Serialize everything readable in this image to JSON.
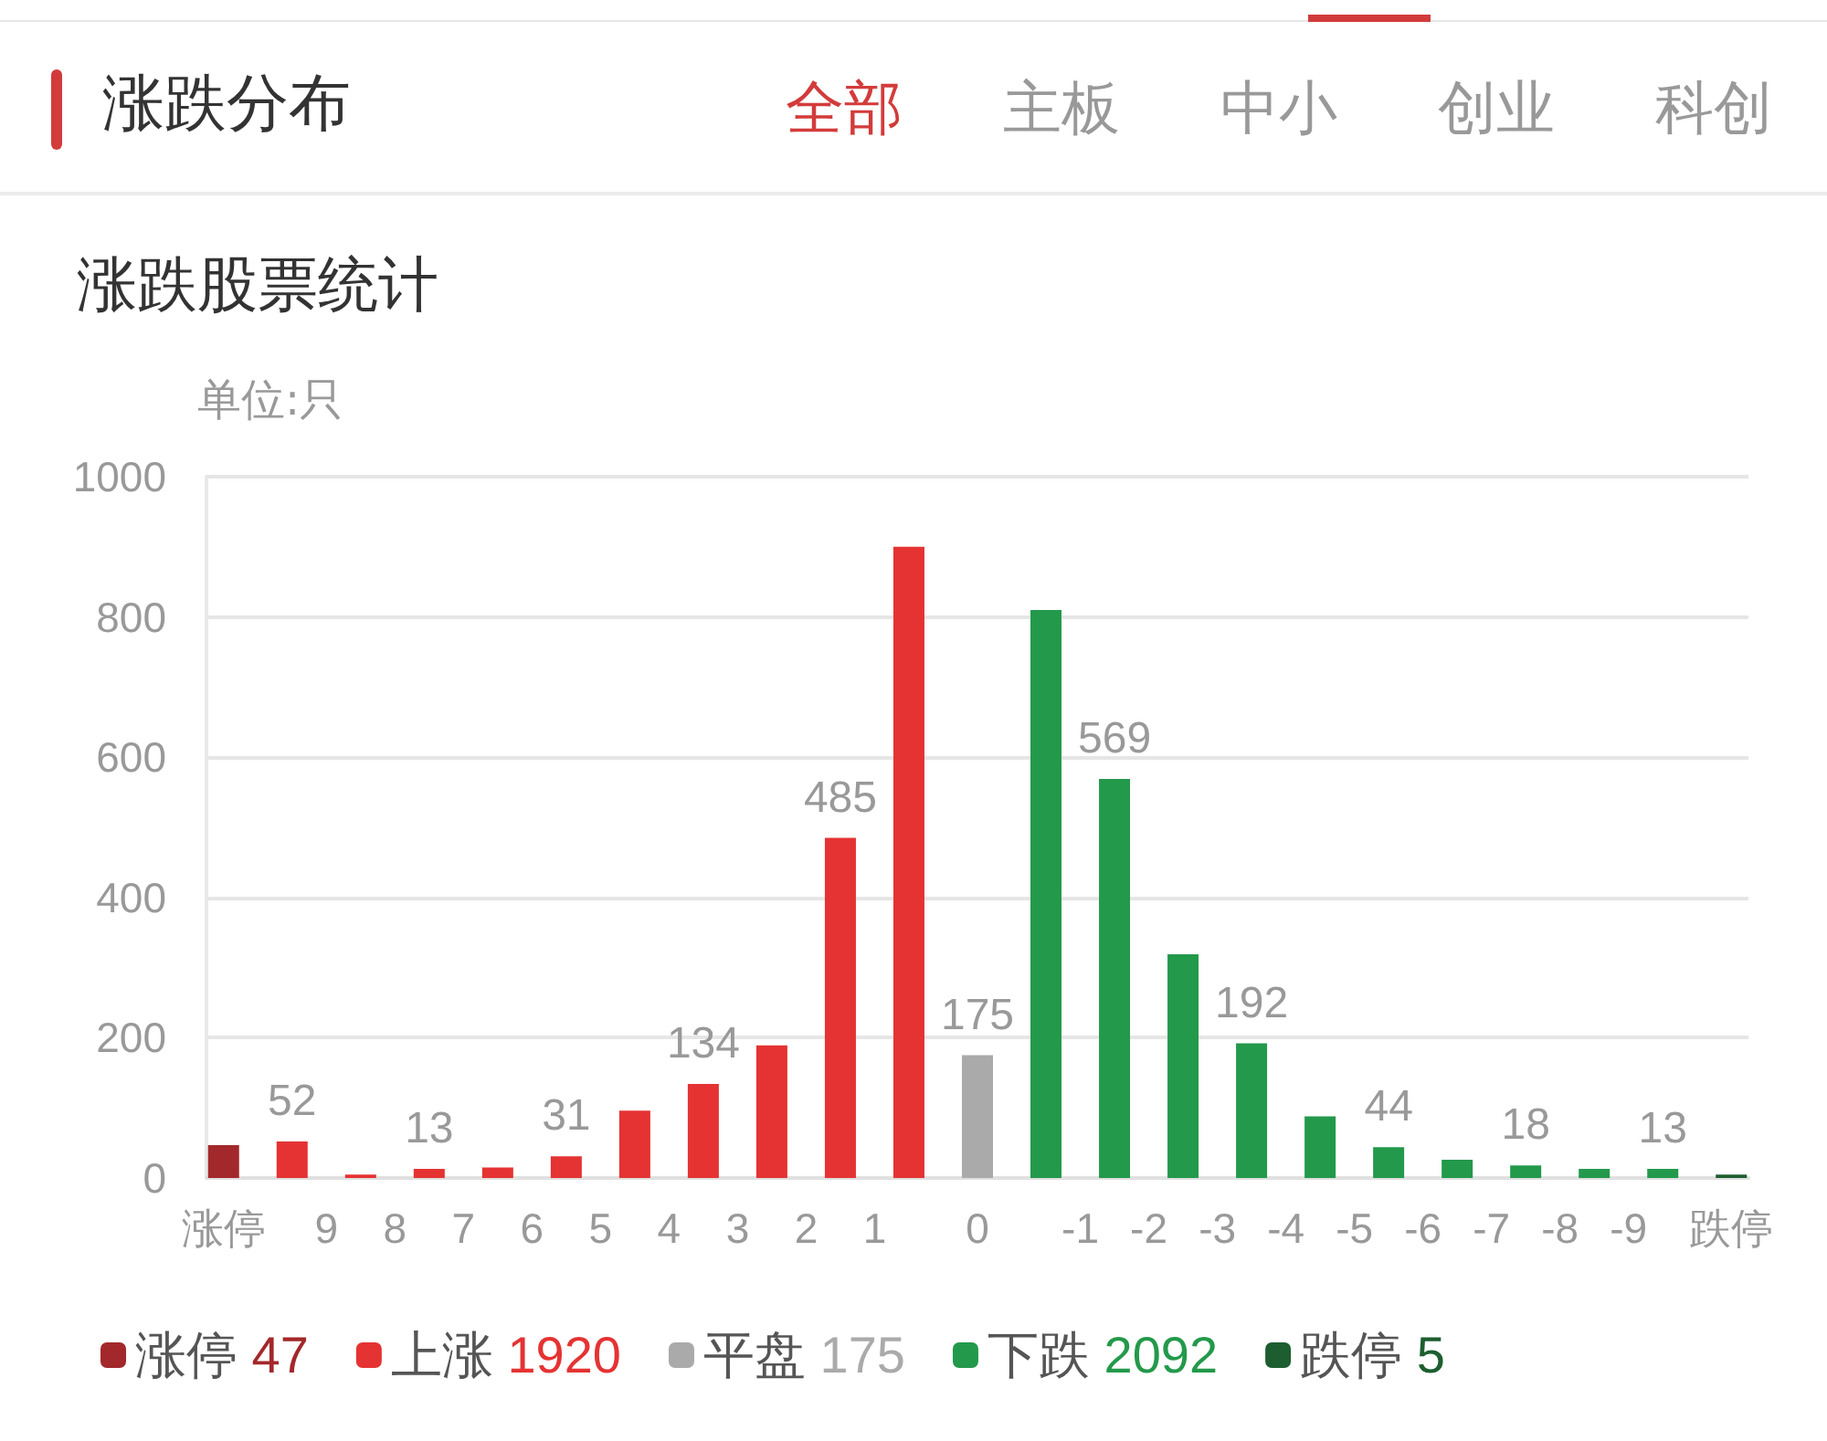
{
  "chart_data": {
    "type": "bar",
    "title": "涨跌分布",
    "subtitle": "涨跌股票统计",
    "ylabel": "单位:只",
    "annotations": [
      "全部",
      "主板",
      "中小",
      "创业",
      "科创"
    ],
    "categories": [
      "涨停",
      null,
      null,
      "9",
      null,
      "8",
      null,
      "7",
      null,
      "6",
      null,
      "5",
      null,
      "4",
      null,
      "3",
      null,
      "2",
      null,
      "1",
      null,
      null,
      "0",
      null,
      null,
      "-1",
      null,
      "-2",
      null,
      "-3",
      null,
      "-4",
      null,
      "-5",
      null,
      "-6",
      null,
      "-7",
      null,
      "-8",
      null,
      "-9",
      null,
      null,
      "跌停"
    ],
    "ylim": [
      0,
      1000
    ],
    "yticks": [
      0,
      200,
      400,
      600,
      800,
      1000
    ],
    "grid": "y",
    "legend": "bottom",
    "series": [
      {
        "name": "涨停 47",
        "color": "#a3282b",
        "values": [
          47,
          null,
          null,
          null,
          null,
          null,
          null,
          null,
          null,
          null,
          null,
          null,
          null,
          null,
          null,
          null,
          null,
          null,
          null,
          null,
          null,
          null,
          null,
          null,
          null,
          null,
          null,
          null,
          null,
          null,
          null,
          null,
          null,
          null,
          null,
          null,
          null,
          null,
          null,
          null,
          null,
          null,
          null,
          null,
          null
        ]
      },
      {
        "name": "上涨 1920",
        "color": "#e53333",
        "values": [
          null,
          null,
          52,
          null,
          5,
          null,
          13,
          null,
          15,
          null,
          31,
          null,
          96,
          null,
          134,
          null,
          189,
          null,
          485,
          null,
          900,
          null,
          null,
          null,
          null,
          null,
          null,
          null,
          null,
          null,
          null,
          null,
          null,
          null,
          null,
          null,
          null,
          null,
          null,
          null,
          null,
          null,
          null,
          null,
          null
        ],
        "value_labels": [
          null,
          null,
          "52",
          null,
          null,
          null,
          "13",
          null,
          null,
          null,
          "31",
          null,
          null,
          null,
          "134",
          null,
          null,
          null,
          "485",
          null,
          null,
          null,
          null,
          null,
          null,
          null,
          null,
          null,
          null,
          null,
          null,
          null,
          null,
          null,
          null,
          null,
          null,
          null,
          null,
          null,
          null,
          null,
          null,
          null,
          null
        ]
      },
      {
        "name": "平盘 175",
        "color": "#aaaaaa",
        "values": [
          null,
          null,
          null,
          null,
          null,
          null,
          null,
          null,
          null,
          null,
          null,
          null,
          null,
          null,
          null,
          null,
          null,
          null,
          null,
          null,
          null,
          null,
          175,
          null,
          null,
          null,
          null,
          null,
          null,
          null,
          null,
          null,
          null,
          null,
          null,
          null,
          null,
          null,
          null,
          null,
          null,
          null,
          null,
          null,
          null
        ],
        "value_labels": [
          null,
          null,
          null,
          null,
          null,
          null,
          null,
          null,
          null,
          null,
          null,
          null,
          null,
          null,
          null,
          null,
          null,
          null,
          null,
          null,
          null,
          null,
          "175",
          null,
          null,
          null,
          null,
          null,
          null,
          null,
          null,
          null,
          null,
          null,
          null,
          null,
          null,
          null,
          null,
          null,
          null,
          null,
          null,
          null,
          null
        ]
      },
      {
        "name": "下跌 2092",
        "color": "#23994b",
        "values": [
          null,
          null,
          null,
          null,
          null,
          null,
          null,
          null,
          null,
          null,
          null,
          null,
          null,
          null,
          null,
          null,
          null,
          null,
          null,
          null,
          null,
          null,
          null,
          null,
          810,
          null,
          569,
          null,
          319,
          null,
          192,
          null,
          88,
          null,
          44,
          null,
          26,
          null,
          18,
          null,
          13,
          null,
          13,
          null,
          null
        ],
        "value_labels": [
          null,
          null,
          null,
          null,
          null,
          null,
          null,
          null,
          null,
          null,
          null,
          null,
          null,
          null,
          null,
          null,
          null,
          null,
          null,
          null,
          null,
          null,
          null,
          null,
          null,
          null,
          "569",
          null,
          null,
          null,
          "192",
          null,
          null,
          null,
          "44",
          null,
          null,
          null,
          "18",
          null,
          null,
          null,
          "13",
          null,
          null
        ]
      },
      {
        "name": "跌停 5",
        "color": "#1d5e30",
        "values": [
          null,
          null,
          null,
          null,
          null,
          null,
          null,
          null,
          null,
          null,
          null,
          null,
          null,
          null,
          null,
          null,
          null,
          null,
          null,
          null,
          null,
          null,
          null,
          null,
          null,
          null,
          null,
          null,
          null,
          null,
          null,
          null,
          null,
          null,
          null,
          null,
          null,
          null,
          null,
          null,
          null,
          null,
          null,
          null,
          5
        ]
      }
    ]
  }
}
